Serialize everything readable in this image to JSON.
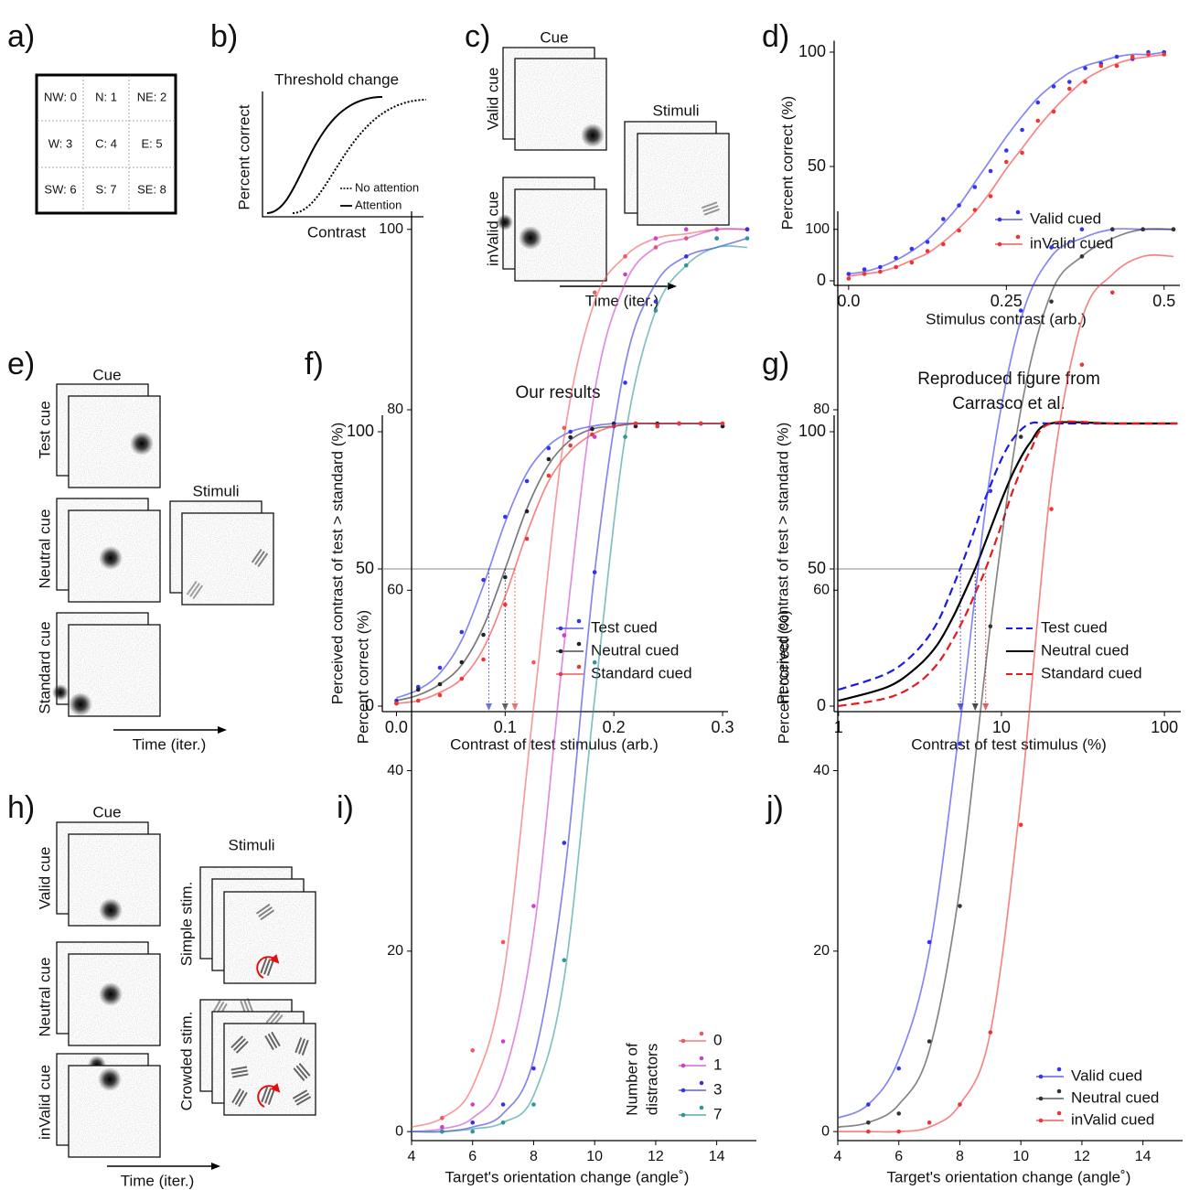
{
  "panel_labels": [
    "a)",
    "b)",
    "c)",
    "d)",
    "e)",
    "f)",
    "g)",
    "h)",
    "i)",
    "j)"
  ],
  "grid_cells": [
    "NW: 0",
    "N: 1",
    "NE: 2",
    "W: 3",
    "C: 4",
    "E: 5",
    "SW: 6",
    "S: 7",
    "SE: 8"
  ],
  "schematic": {
    "title": "Threshold change",
    "y_label": "Percent correct",
    "x_label": "Contrast",
    "legend": [
      "No attention",
      "Attention"
    ]
  },
  "panel_c": {
    "cue_title": "Cue",
    "rows": [
      "Valid cue",
      "inValid cue"
    ],
    "stimuli_title": "Stimuli",
    "time_label": "Time (iter.)"
  },
  "panel_e": {
    "cue_title": "Cue",
    "rows": [
      "Test cue",
      "Neutral cue",
      "Standard cue"
    ],
    "stimuli_title": "Stimuli",
    "time_label": "Time (iter.)"
  },
  "panel_h": {
    "cue_title": "Cue",
    "rows": [
      "Valid cue",
      "Neutral cue",
      "inValid cue"
    ],
    "stimuli_title": "Stimuli",
    "stimuli_rows": [
      "Simple stim.",
      "Crowded stim."
    ],
    "time_label": "Time (iter.)"
  },
  "chart_data": [
    {
      "type": "line",
      "x_label": "Stimulus contrast (arb.)",
      "y_label": "Percent correct (%)",
      "x": [
        0,
        0.025,
        0.05,
        0.075,
        0.1,
        0.125,
        0.15,
        0.175,
        0.2,
        0.225,
        0.25,
        0.275,
        0.3,
        0.325,
        0.35,
        0.375,
        0.4,
        0.425,
        0.45,
        0.475,
        0.5
      ],
      "xlim": [
        -0.023,
        0.525
      ],
      "ylim": [
        -2,
        105
      ],
      "xticks": [
        {
          "value": 0,
          "label": "0.0"
        },
        0.25,
        0.5
      ],
      "yticks": [
        0,
        50,
        100
      ],
      "legend": "lower right",
      "series": [
        {
          "name": "Valid cued",
          "color": "#3434ee",
          "values": [
            3,
            5,
            6,
            10,
            14,
            17,
            27,
            33,
            41,
            48,
            57,
            66,
            78,
            85,
            87,
            93,
            95,
            98,
            97,
            100,
            100
          ],
          "fit": [
            3,
            4,
            6,
            9,
            13,
            18,
            25,
            33,
            43,
            53,
            63,
            72,
            80,
            86,
            91,
            94,
            96,
            98,
            99,
            99,
            100
          ]
        },
        {
          "name": "inValid cued",
          "color": "#ee3434",
          "values": [
            1,
            3,
            4,
            6,
            8,
            13,
            16,
            22,
            31,
            37,
            52,
            56,
            70,
            74,
            84,
            87,
            94,
            94,
            98,
            99,
            99
          ],
          "fit": [
            2,
            3,
            4,
            6,
            9,
            12,
            17,
            23,
            30,
            39,
            49,
            58,
            67,
            75,
            82,
            88,
            92,
            95,
            97,
            98,
            99
          ]
        }
      ]
    },
    {
      "type": "line",
      "title": "Our results",
      "x_label": "Contrast of test stimulus (arb.)",
      "y_label": "Perceived contrast of test > standard (%)",
      "x": [
        0,
        0.02,
        0.04,
        0.06,
        0.08,
        0.1,
        0.12,
        0.14,
        0.16,
        0.18,
        0.2,
        0.22,
        0.24,
        0.26,
        0.28,
        0.3
      ],
      "xlim": [
        -0.013,
        0.305
      ],
      "ylim": [
        -2,
        106
      ],
      "xticks": [
        {
          "value": 0,
          "label": "0.0"
        },
        0.1,
        0.2,
        0.3
      ],
      "yticks": [
        0,
        50,
        100
      ],
      "legend": "lower right",
      "reference_y": 50,
      "series": [
        {
          "name": "Test cued",
          "color": "#3434ee",
          "threshold": 0.085,
          "values": [
            2,
            7,
            14,
            27,
            46,
            69,
            82,
            94,
            100,
            101,
            102,
            103,
            102,
            103,
            103,
            102
          ],
          "fit": [
            3,
            6,
            12,
            24,
            44,
            67,
            85,
            95,
            100,
            102,
            103,
            103,
            103,
            103,
            103,
            103
          ]
        },
        {
          "name": "Neutral cued",
          "color": "#222222",
          "threshold": 0.1,
          "values": [
            1,
            6,
            8,
            16,
            26,
            47,
            71,
            90,
            98,
            101,
            103,
            102,
            103,
            103,
            103,
            102
          ],
          "fit": [
            2,
            4,
            8,
            15,
            29,
            50,
            72,
            88,
            97,
            101,
            102,
            103,
            103,
            103,
            103,
            103
          ]
        },
        {
          "name": "Standard cued",
          "color": "#ee3434",
          "threshold": 0.109,
          "values": [
            1,
            2,
            4,
            10,
            17,
            37,
            61,
            84,
            95,
            99,
            102,
            103,
            102,
            103,
            103,
            103
          ],
          "fit": [
            1,
            2,
            5,
            10,
            21,
            40,
            63,
            82,
            93,
            99,
            102,
            103,
            103,
            103,
            103,
            103
          ]
        }
      ]
    },
    {
      "type": "line",
      "title": [
        "Reproduced figure from",
        "Carrasco et al."
      ],
      "x_label": "Contrast of test stimulus (%)",
      "y_label": "Perceived contrast of test > standard (%)",
      "xscale": "log",
      "x": [
        1,
        2,
        3,
        4,
        5,
        6,
        7,
        8,
        10,
        12,
        15,
        20,
        50,
        120
      ],
      "xlim": [
        0.94,
        126
      ],
      "ylim": [
        -2,
        106
      ],
      "xticks": [
        1,
        10,
        100
      ],
      "yticks": [
        0,
        50,
        100
      ],
      "legend": "lower right",
      "reference_y": 50,
      "series": [
        {
          "name": "Test cued",
          "color": "#1a1ae6",
          "linestyle": "dashed",
          "threshold": 5.6,
          "values": [
            6,
            12,
            20,
            30,
            43,
            55,
            66,
            76,
            90,
            98,
            103,
            103,
            103,
            103
          ]
        },
        {
          "name": "Neutral cued",
          "color": "#000000",
          "linestyle": "solid",
          "threshold": 6.9,
          "values": [
            2,
            7,
            14,
            22,
            32,
            42,
            51,
            60,
            75,
            86,
            96,
            103,
            103,
            103
          ]
        },
        {
          "name": "Standard cued",
          "color": "#e61a1a",
          "linestyle": "dashed",
          "threshold": 8,
          "values": [
            0,
            3,
            8,
            15,
            24,
            33,
            42,
            50,
            66,
            80,
            93,
            103,
            103,
            103
          ]
        }
      ]
    },
    {
      "type": "line",
      "x_label": "Target's orientation change (angle˚)",
      "y_label": "Percent correct (%)",
      "x": [
        4,
        5,
        6,
        7,
        8,
        9,
        10,
        11,
        12,
        13,
        14,
        15
      ],
      "xlim": [
        4,
        15.3
      ],
      "ylim": [
        -1,
        102
      ],
      "xticks": [
        4,
        6,
        8,
        10,
        12,
        14
      ],
      "yticks": [
        0,
        20,
        40,
        60,
        80,
        100
      ],
      "legend": "lower right",
      "legend_title": [
        "Number of",
        "distractors"
      ],
      "series": [
        {
          "name": "0",
          "color": "#f05a5a",
          "values": [
            null,
            1.5,
            9,
            21,
            52,
            78,
            93,
            97,
            98,
            99,
            100,
            100
          ],
          "fit": [
            0.5,
            1.5,
            5,
            17,
            47,
            77,
            92,
            97,
            99,
            99.5,
            100,
            100
          ]
        },
        {
          "name": "1",
          "color": "#cc3fcc",
          "values": [
            null,
            0.5,
            3,
            10,
            25,
            55,
            77,
            95,
            99,
            100,
            100,
            100
          ],
          "fit": [
            0,
            0.3,
            1.5,
            6,
            22,
            54,
            82,
            94,
            98,
            99,
            100,
            100
          ]
        },
        {
          "name": "3",
          "color": "#3434dd",
          "values": [
            null,
            0,
            1,
            3,
            7,
            32,
            62,
            83,
            92,
            97,
            99,
            100
          ],
          "fit": [
            0,
            0,
            0.5,
            2,
            8,
            28,
            62,
            85,
            94,
            97,
            98,
            99
          ]
        },
        {
          "name": "7",
          "color": "#2e9696",
          "values": [
            null,
            0,
            0,
            1,
            3,
            19,
            52,
            77,
            91,
            96,
            99,
            99
          ],
          "fit": [
            0,
            0,
            0.3,
            1,
            4,
            17,
            48,
            77,
            91,
            96,
            98,
            98
          ]
        }
      ]
    },
    {
      "type": "line",
      "x_label": "Target's orientation change (angle˚)",
      "y_label": "Percent correct (%)",
      "x": [
        4,
        5,
        6,
        7,
        8,
        9,
        10,
        11,
        12,
        13,
        14,
        15
      ],
      "xlim": [
        4,
        15.3
      ],
      "ylim": [
        -1,
        102
      ],
      "xticks": [
        4,
        6,
        8,
        10,
        12,
        14
      ],
      "yticks": [
        0,
        20,
        40,
        60,
        80,
        100
      ],
      "legend": "lower right",
      "series": [
        {
          "name": "Valid cued",
          "color": "#3434ee",
          "values": [
            null,
            3,
            7,
            21,
            43,
            71,
            91,
            98,
            100,
            100,
            100,
            100
          ],
          "fit": [
            1.5,
            3,
            8,
            20,
            45,
            73,
            90,
            97,
            99,
            100,
            100,
            100
          ]
        },
        {
          "name": "Neutral cued",
          "color": "#333333",
          "values": [
            null,
            1,
            2,
            10,
            25,
            56,
            77,
            92,
            97,
            100,
            100,
            100
          ],
          "fit": [
            0.5,
            1,
            3,
            9,
            27,
            56,
            80,
            93,
            97,
            99,
            100,
            100
          ]
        },
        {
          "name": "inValid cued",
          "color": "#ee3434",
          "values": [
            null,
            0,
            0,
            1,
            3,
            11,
            34,
            69,
            85,
            93,
            null,
            null
          ],
          "fit": [
            0,
            0,
            0,
            0.5,
            3,
            11,
            37,
            72,
            90,
            95,
            97,
            97
          ]
        }
      ]
    }
  ]
}
